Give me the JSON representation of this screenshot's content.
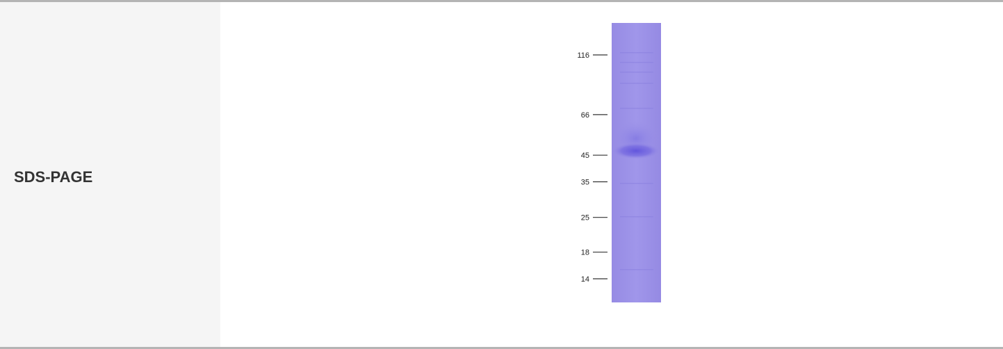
{
  "row": {
    "label": "SDS-PAGE"
  },
  "gel": {
    "lane_color": "#9b91e6",
    "band_color": "#6a5ee0",
    "markers": [
      {
        "label": "116",
        "kda": 116
      },
      {
        "label": "66",
        "kda": 66
      },
      {
        "label": "45",
        "kda": 45
      },
      {
        "label": "35",
        "kda": 35
      },
      {
        "label": "25",
        "kda": 25
      },
      {
        "label": "18",
        "kda": 18
      },
      {
        "label": "14",
        "kda": 14
      }
    ]
  }
}
